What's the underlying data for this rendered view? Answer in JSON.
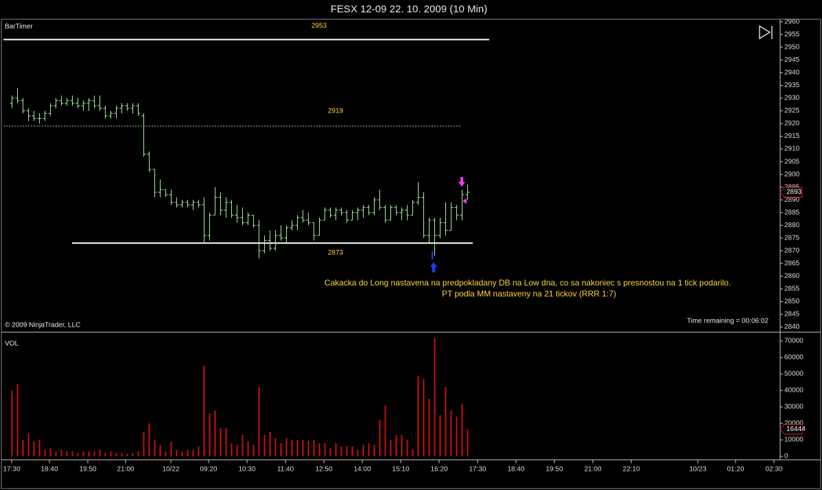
{
  "chart_data": [
    {
      "type": "ohlc",
      "title": "FESX 12-09  22. 10. 2009 (10 Min)",
      "indicator": "BarTimer",
      "copyright": "© 2009 NinjaTrader, LLC",
      "time_remaining": "Time remaining = 00:06:02",
      "annotation": [
        "Cakacka do Long nastavena na predpokladany DB na Low dna, co sa nakoniec s presnostou na 1 tick podarilo.",
        "PT podla MM nastaveny na 21 tickov (RRR 1:7)"
      ],
      "color": "#a8f0a0",
      "ylim": [
        2838,
        2961
      ],
      "yticks": [
        2840,
        2845,
        2850,
        2855,
        2860,
        2865,
        2870,
        2875,
        2880,
        2885,
        2890,
        2895,
        2900,
        2905,
        2910,
        2915,
        2920,
        2925,
        2930,
        2935,
        2940,
        2945,
        2950,
        2955,
        2960
      ],
      "hlines": [
        2953,
        2919,
        2873
      ],
      "hline_styles": [
        "solid",
        "dashed",
        "solid"
      ],
      "open": [
        2928,
        2930,
        2929,
        2925,
        2923,
        2922,
        2922,
        2924,
        2927,
        2929,
        2928,
        2929,
        2928,
        2927,
        2928,
        2929,
        2927,
        2926,
        2923,
        2924,
        2926,
        2927,
        2926,
        2927,
        2923,
        2908,
        2902,
        2893,
        2894,
        2892,
        2889,
        2888,
        2889,
        2888,
        2889,
        2888,
        2876,
        2884,
        2891,
        2886,
        2889,
        2884,
        2883,
        2881,
        2884,
        2880,
        2870,
        2874,
        2871,
        2876,
        2875,
        2879,
        2880,
        2883,
        2882,
        2881,
        2876,
        2882,
        2886,
        2884,
        2886,
        2885,
        2882,
        2885,
        2886,
        2887,
        2885,
        2890,
        2887,
        2882,
        2887,
        2885,
        2886,
        2884,
        2889,
        2891,
        2876,
        2882,
        2876,
        2881,
        2878,
        2887,
        2884,
        2892
      ],
      "high": [
        2931,
        2934,
        2930,
        2926,
        2925,
        2924,
        2925,
        2928,
        2930,
        2931,
        2930,
        2931,
        2930,
        2929,
        2930,
        2931,
        2931,
        2927,
        2925,
        2927,
        2928,
        2928,
        2928,
        2928,
        2924,
        2909,
        2902,
        2898,
        2894,
        2894,
        2891,
        2890,
        2890,
        2890,
        2890,
        2891,
        2885,
        2895,
        2893,
        2891,
        2890,
        2888,
        2887,
        2885,
        2884,
        2882,
        2876,
        2878,
        2878,
        2880,
        2880,
        2882,
        2884,
        2886,
        2885,
        2881,
        2883,
        2887,
        2887,
        2887,
        2887,
        2886,
        2886,
        2887,
        2888,
        2888,
        2891,
        2894,
        2888,
        2888,
        2888,
        2887,
        2888,
        2890,
        2897,
        2893,
        2883,
        2883,
        2883,
        2889,
        2889,
        2888,
        2894,
        2896
      ],
      "low": [
        2926,
        2928,
        2924,
        2921,
        2921,
        2920,
        2921,
        2923,
        2926,
        2927,
        2927,
        2927,
        2926,
        2925,
        2925,
        2926,
        2925,
        2922,
        2922,
        2922,
        2924,
        2925,
        2924,
        2923,
        2907,
        2901,
        2891,
        2891,
        2891,
        2888,
        2887,
        2887,
        2887,
        2886,
        2887,
        2873,
        2874,
        2884,
        2884,
        2883,
        2883,
        2881,
        2880,
        2880,
        2879,
        2867,
        2869,
        2870,
        2870,
        2874,
        2873,
        2878,
        2878,
        2881,
        2880,
        2874,
        2876,
        2882,
        2883,
        2882,
        2884,
        2881,
        2882,
        2882,
        2883,
        2884,
        2884,
        2886,
        2881,
        2882,
        2884,
        2882,
        2882,
        2884,
        2888,
        2875,
        2873,
        2868,
        2875,
        2876,
        2878,
        2882,
        2882,
        2890
      ],
      "close": [
        2930,
        2929,
        2925,
        2923,
        2922,
        2922,
        2924,
        2927,
        2929,
        2928,
        2929,
        2928,
        2927,
        2928,
        2929,
        2927,
        2926,
        2923,
        2924,
        2926,
        2927,
        2926,
        2927,
        2924,
        2908,
        2902,
        2893,
        2894,
        2892,
        2889,
        2888,
        2889,
        2888,
        2889,
        2888,
        2876,
        2884,
        2891,
        2886,
        2889,
        2884,
        2883,
        2881,
        2884,
        2880,
        2870,
        2874,
        2871,
        2876,
        2875,
        2879,
        2880,
        2883,
        2882,
        2881,
        2876,
        2882,
        2886,
        2884,
        2886,
        2885,
        2882,
        2885,
        2886,
        2887,
        2885,
        2890,
        2887,
        2882,
        2887,
        2885,
        2886,
        2884,
        2889,
        2891,
        2876,
        2882,
        2876,
        2881,
        2878,
        2887,
        2884,
        2892,
        2893
      ]
    },
    {
      "type": "bar",
      "name": "VOL",
      "color": "#cc1010",
      "ylim": [
        0,
        74000
      ],
      "yticks": [
        0,
        10000,
        20000,
        30000,
        40000,
        50000,
        60000,
        70000
      ],
      "values": [
        40000,
        44000,
        10000,
        14000,
        9000,
        10000,
        4000,
        5000,
        3000,
        4000,
        3000,
        3000,
        2000,
        3000,
        3000,
        3000,
        4000,
        2000,
        3000,
        2000,
        2000,
        1500,
        2000,
        3000,
        15000,
        20000,
        10000,
        7000,
        3000,
        9000,
        4000,
        3000,
        4000,
        4000,
        6000,
        55000,
        26000,
        28000,
        17000,
        17000,
        8000,
        7000,
        13000,
        9000,
        7000,
        42000,
        13000,
        15000,
        11000,
        8000,
        11000,
        10000,
        10000,
        10000,
        9500,
        10000,
        8000,
        8000,
        5000,
        8000,
        6000,
        6000,
        6000,
        4000,
        7000,
        8000,
        7000,
        22000,
        31000,
        10000,
        13000,
        13000,
        10000,
        4000,
        49000,
        47000,
        35000,
        72000,
        25000,
        42000,
        28000,
        24000,
        32000,
        16444
      ],
      "x_labels": [
        "17:30",
        "18:40",
        "19:50",
        "21:00",
        "10/22",
        "09:20",
        "10:30",
        "11:40",
        "12:50",
        "14:00",
        "15:10",
        "16:20",
        "17:30",
        "18:40",
        "19:50",
        "21:00",
        "22:10",
        "10/23",
        "01:20",
        "02:30"
      ]
    }
  ]
}
